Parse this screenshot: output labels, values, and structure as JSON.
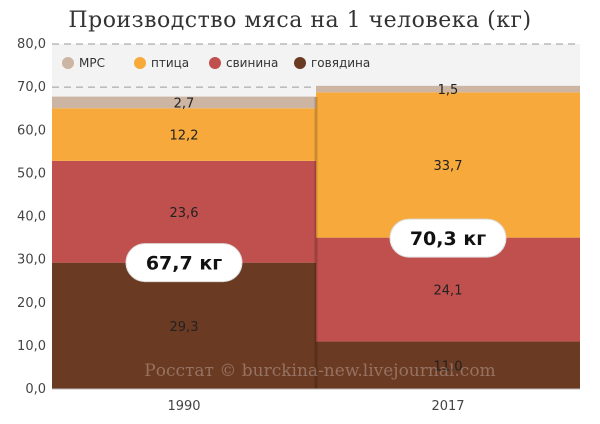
{
  "chart_data": {
    "type": "bar",
    "stacked": true,
    "title": "Производство мяса на 1 человека (кг)",
    "categories": [
      "1990",
      "2017"
    ],
    "series": [
      {
        "name": "говядина",
        "color": "#6b3a22",
        "values": [
          29.3,
          11.0
        ],
        "labels": [
          "29,3",
          "11,0"
        ]
      },
      {
        "name": "свинина",
        "color": "#c0504d",
        "values": [
          23.6,
          24.1
        ],
        "labels": [
          "23,6",
          "24,1"
        ]
      },
      {
        "name": "птица",
        "color": "#f7a93b",
        "values": [
          12.2,
          33.7
        ],
        "labels": [
          "12,2",
          "33,7"
        ]
      },
      {
        "name": "МРС",
        "color": "#cdb5a3",
        "values": [
          2.7,
          1.5
        ],
        "labels": [
          "2,7",
          "1,5"
        ]
      }
    ],
    "legend_order": [
      "МРС",
      "птица",
      "свинина",
      "говядина"
    ],
    "totals": [
      "67,7 кг",
      "70,3 кг"
    ],
    "totals_values": [
      67.7,
      70.3
    ],
    "ylim": [
      0,
      80
    ],
    "yticks": [
      0,
      10,
      20,
      30,
      40,
      50,
      60,
      70,
      80
    ],
    "ytick_labels": [
      "0,0",
      "10,0",
      "20,0",
      "30,0",
      "40,0",
      "50,0",
      "60,0",
      "70,0",
      "80,0"
    ],
    "grid": true,
    "legend_position": "top-left",
    "watermark": "Росстат © burckina-new.livejournal.com"
  }
}
